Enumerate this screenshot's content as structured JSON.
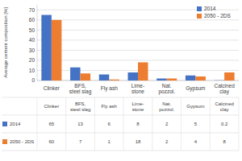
{
  "chart_data": {
    "type": "bar",
    "categories": [
      "Clinker",
      "BFS,\nsteel slag",
      "Fly ash",
      "Lime-\nstone",
      "Nat.\npozzol.",
      "Gypsum",
      "Calcined\nclay"
    ],
    "series": [
      {
        "name": "2014",
        "color": "#4472C4",
        "values": [
          65,
          13,
          6,
          8,
          2,
          5,
          0.2
        ]
      },
      {
        "name": "2050 - 2DS",
        "color": "#ED7D31",
        "values": [
          60,
          7,
          1,
          18,
          2,
          4,
          8
        ]
      }
    ],
    "ylabel": "Average cement composition [%]",
    "ylim": [
      0,
      75
    ],
    "yticks": [
      0,
      10,
      20,
      30,
      40,
      50,
      60,
      70
    ],
    "grid": true,
    "legend": "upper right"
  }
}
